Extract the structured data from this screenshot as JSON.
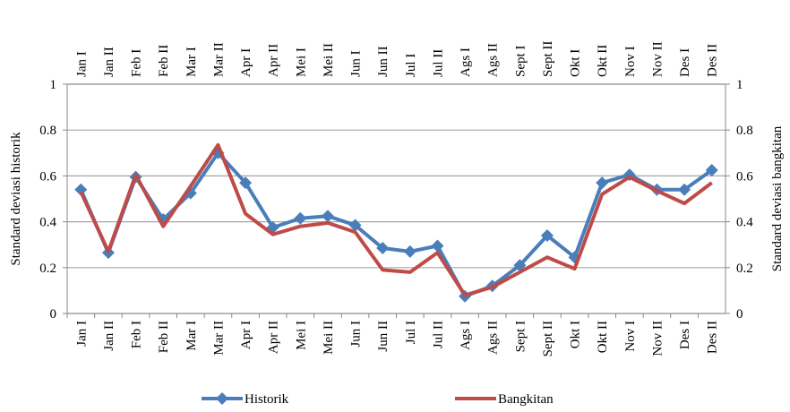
{
  "chart_data": {
    "type": "line",
    "ylabel": "Standard deviasi historik",
    "y2label": "Standard deviasi bangkitan",
    "categories": [
      "Jan I",
      "Jan II",
      "Feb I",
      "Feb II",
      "Mar I",
      "Mar II",
      "Apr I",
      "Apr II",
      "Mei I",
      "Mei II",
      "Jun I",
      "Jun II",
      "Jul I",
      "Jul II",
      "Ags I",
      "Ags II",
      "Sept I",
      "Sept II",
      "Okt I",
      "Okt II",
      "Nov I",
      "Nov II",
      "Des I",
      "Des II"
    ],
    "series": [
      {
        "name": "Historik",
        "color": "#4a7ebb",
        "marker": "diamond",
        "values": [
          0.54,
          0.265,
          0.595,
          0.41,
          0.525,
          0.7,
          0.57,
          0.375,
          0.415,
          0.425,
          0.385,
          0.285,
          0.27,
          0.295,
          0.075,
          0.12,
          0.21,
          0.34,
          0.245,
          0.57,
          0.605,
          0.54,
          0.54,
          0.625
        ]
      },
      {
        "name": "Bangkitan",
        "color": "#be4b48",
        "axis": "y2",
        "values": [
          0.53,
          0.27,
          0.605,
          0.38,
          0.555,
          0.735,
          0.435,
          0.345,
          0.38,
          0.395,
          0.355,
          0.19,
          0.18,
          0.265,
          0.08,
          0.115,
          0.18,
          0.245,
          0.195,
          0.52,
          0.595,
          0.535,
          0.48,
          0.57
        ]
      }
    ],
    "ylim": [
      0,
      1
    ],
    "yticks": [
      0,
      0.2,
      0.4,
      0.6,
      0.8,
      1
    ],
    "y2lim": [
      0,
      1
    ],
    "y2ticks": [
      0,
      0.2,
      0.4,
      0.6,
      0.8,
      1
    ],
    "grid": true
  }
}
